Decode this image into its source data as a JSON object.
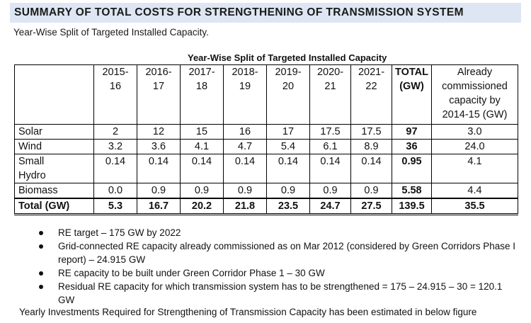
{
  "banner": {
    "title": "SUMMARY OF TOTAL COSTS FOR STRENGTHENING OF TRANSMISSION SYSTEM"
  },
  "subtitle": "Year-Wise Split of Targeted Installed Capacity.",
  "table": {
    "caption": "Year-Wise Split of Targeted Installed Capacity",
    "headers": [
      {
        "l1": "2015-",
        "l2": "16"
      },
      {
        "l1": "2016-",
        "l2": "17"
      },
      {
        "l1": "2017-",
        "l2": "18"
      },
      {
        "l1": "2018-",
        "l2": "19"
      },
      {
        "l1": "2019-",
        "l2": "20"
      },
      {
        "l1": "2020-",
        "l2": "21"
      },
      {
        "l1": "2021-",
        "l2": "22"
      },
      {
        "l1": "TOTAL",
        "l2": "(GW)"
      }
    ],
    "already_header": {
      "l1": "Already",
      "l2": "commissioned",
      "l3": "capacity by",
      "l4": "2014-15 (GW)"
    },
    "rows": [
      {
        "label": "Solar",
        "values": [
          "2",
          "12",
          "15",
          "16",
          "17",
          "17.5",
          "17.5"
        ],
        "total": "97",
        "already": "3.0"
      },
      {
        "label": "Wind",
        "values": [
          "3.2",
          "3.6",
          "4.1",
          "4.7",
          "5.4",
          "6.1",
          "8.9"
        ],
        "total": "36",
        "already": "24.0"
      },
      {
        "label1": "Small",
        "label2": "Hydro",
        "values": [
          "0.14",
          "0.14",
          "0.14",
          "0.14",
          "0.14",
          "0.14",
          "0.14"
        ],
        "total": "0.95",
        "already": "4.1"
      },
      {
        "label": "Biomass",
        "values": [
          "0.0",
          "0.9",
          "0.9",
          "0.9",
          "0.9",
          "0.9",
          "0.9"
        ],
        "total": "5.58",
        "already": "4.4"
      }
    ],
    "total_row": {
      "label": "Total (GW)",
      "values": [
        "5.3",
        "16.7",
        "20.2",
        "21.8",
        "23.5",
        "24.7",
        "27.5"
      ],
      "total": "139.5",
      "already": "35.5"
    }
  },
  "bullets": [
    "RE target – 175 GW by 2022",
    "Grid-connected RE capacity already commissioned as on Mar 2012 (considered by Green Corridors Phase I report) – 24.915 GW",
    "RE capacity to be built under Green Corridor Phase 1 – 30 GW",
    "Residual RE capacity for which transmission system has to be strengthened = 175 – 24.915 – 30 = 120.1 GW"
  ],
  "footer": "Yearly Investments Required for Strengthening of Transmission Capacity has been estimated in below figure"
}
